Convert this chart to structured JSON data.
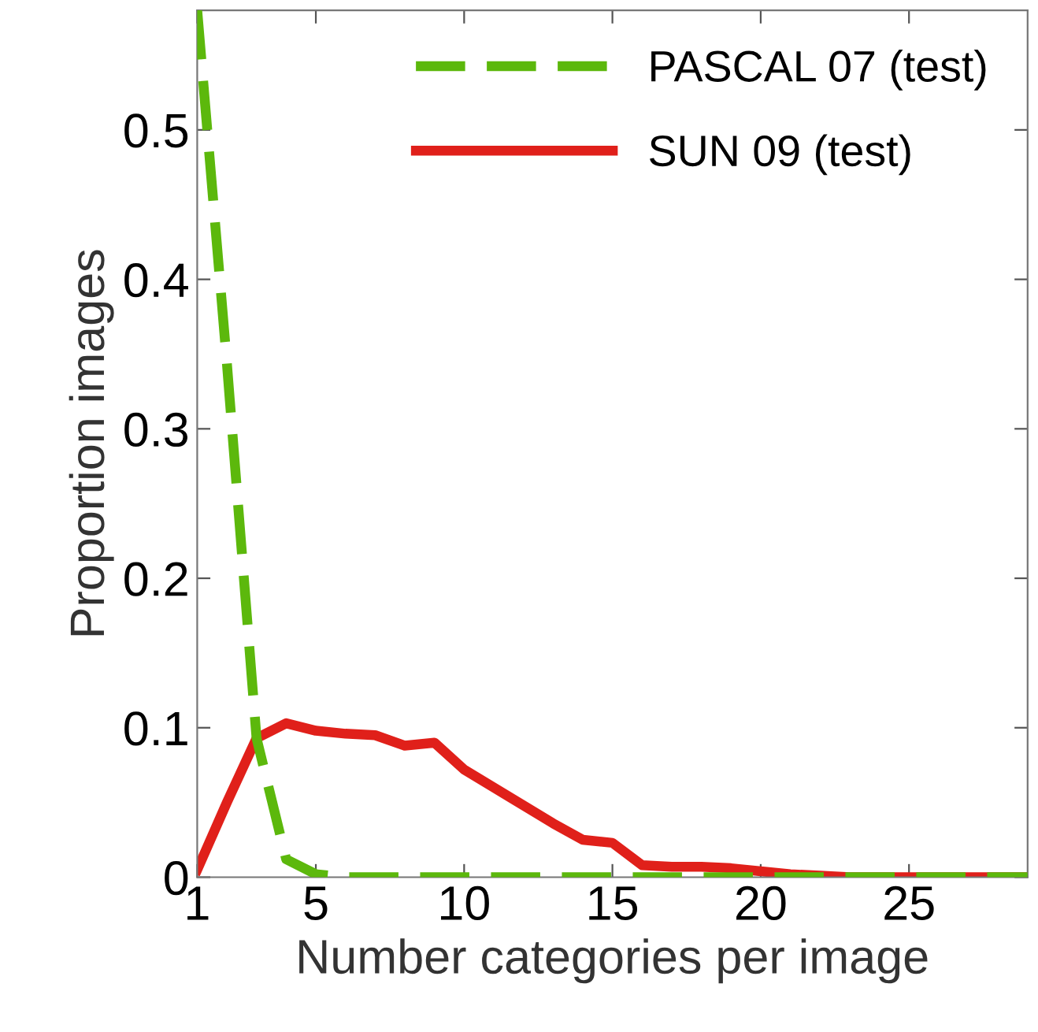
{
  "chart_data": {
    "type": "line",
    "xlabel": "Number categories per image",
    "ylabel": "Proportion images",
    "x": [
      1,
      2,
      3,
      4,
      5,
      6,
      7,
      8,
      9,
      10,
      11,
      12,
      13,
      14,
      15,
      16,
      17,
      18,
      19,
      20,
      21,
      22,
      23,
      24,
      25,
      26,
      27,
      28,
      29
    ],
    "series": [
      {
        "name": "PASCAL 07 (test)",
        "color": "#5cb80c",
        "line_style": "dashed",
        "values": [
          0.58,
          0.344,
          0.093,
          0.012,
          0.002,
          0,
          0,
          0,
          0,
          0,
          0,
          0,
          0,
          0,
          0,
          0,
          0,
          0,
          0,
          0,
          0,
          0,
          0,
          0,
          0,
          0,
          0,
          0,
          0
        ]
      },
      {
        "name": "SUN 09 (test)",
        "color": "#e0201a",
        "line_style": "solid",
        "values": [
          0.005,
          0.05,
          0.093,
          0.103,
          0.098,
          0.096,
          0.095,
          0.088,
          0.09,
          0.072,
          0.06,
          0.048,
          0.036,
          0.025,
          0.023,
          0.008,
          0.007,
          0.007,
          0.006,
          0.004,
          0.002,
          0.001,
          0,
          0,
          0,
          0,
          0,
          0,
          0
        ]
      }
    ],
    "xlim": [
      1,
      29
    ],
    "ylim": [
      0,
      0.58
    ],
    "xticks": [
      1,
      5,
      10,
      15,
      20,
      25
    ],
    "yticks": [
      0,
      0.1,
      0.2,
      0.3,
      0.4,
      0.5
    ],
    "grid": false,
    "legend": "top right",
    "marker": "none"
  }
}
